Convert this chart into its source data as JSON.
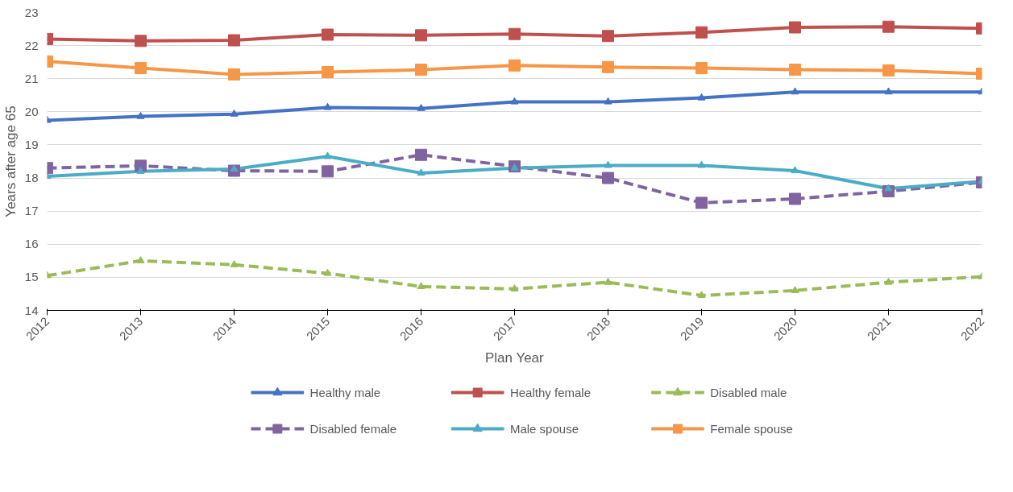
{
  "chart_data": {
    "type": "line",
    "xlabel": "Plan Year",
    "ylabel": "Years after age 65",
    "x": [
      2012,
      2013,
      2014,
      2015,
      2016,
      2017,
      2018,
      2019,
      2020,
      2021,
      2022
    ],
    "xlim": [
      2012,
      2022
    ],
    "xticks": [
      2012,
      2013,
      2014,
      2015,
      2016,
      2017,
      2018,
      2019,
      2020,
      2021,
      2022
    ],
    "ylim": [
      14,
      23
    ],
    "yticks": [
      14,
      15,
      16,
      17,
      18,
      19,
      20,
      21,
      22,
      23
    ],
    "grid": "y",
    "legend": "bottom",
    "series": [
      {
        "name": "Healthy male",
        "color": "#4472c4",
        "marker": "triangle",
        "line_style": "solid",
        "values": [
          19.74,
          19.86,
          19.93,
          20.13,
          20.1,
          20.3,
          20.3,
          20.42,
          20.6,
          20.6,
          20.6
        ]
      },
      {
        "name": "Healthy female",
        "color": "#c0504d",
        "marker": "square",
        "line_style": "solid",
        "values": [
          22.2,
          22.14,
          22.16,
          22.33,
          22.31,
          22.35,
          22.29,
          22.4,
          22.55,
          22.57,
          22.52
        ]
      },
      {
        "name": "Disabled male",
        "color": "#9bbb59",
        "marker": "triangle",
        "line_style": "dashed",
        "values": [
          15.05,
          15.5,
          15.38,
          15.12,
          14.72,
          14.65,
          14.85,
          14.45,
          14.6,
          14.85,
          15.02
        ]
      },
      {
        "name": "Disabled female",
        "color": "#8064a2",
        "marker": "square",
        "line_style": "dashed",
        "values": [
          18.3,
          18.37,
          18.22,
          18.2,
          18.7,
          18.35,
          18.0,
          17.25,
          17.37,
          17.6,
          17.87
        ]
      },
      {
        "name": "Male spouse",
        "color": "#4bacc6",
        "marker": "triangle",
        "line_style": "solid",
        "values": [
          18.05,
          18.2,
          18.27,
          18.65,
          18.15,
          18.3,
          18.38,
          18.38,
          18.22,
          17.68,
          17.9
        ]
      },
      {
        "name": "Female spouse",
        "color": "#f79646",
        "marker": "square",
        "line_style": "solid",
        "values": [
          21.52,
          21.32,
          21.13,
          21.2,
          21.27,
          21.4,
          21.35,
          21.32,
          21.27,
          21.25,
          21.15
        ]
      }
    ]
  }
}
